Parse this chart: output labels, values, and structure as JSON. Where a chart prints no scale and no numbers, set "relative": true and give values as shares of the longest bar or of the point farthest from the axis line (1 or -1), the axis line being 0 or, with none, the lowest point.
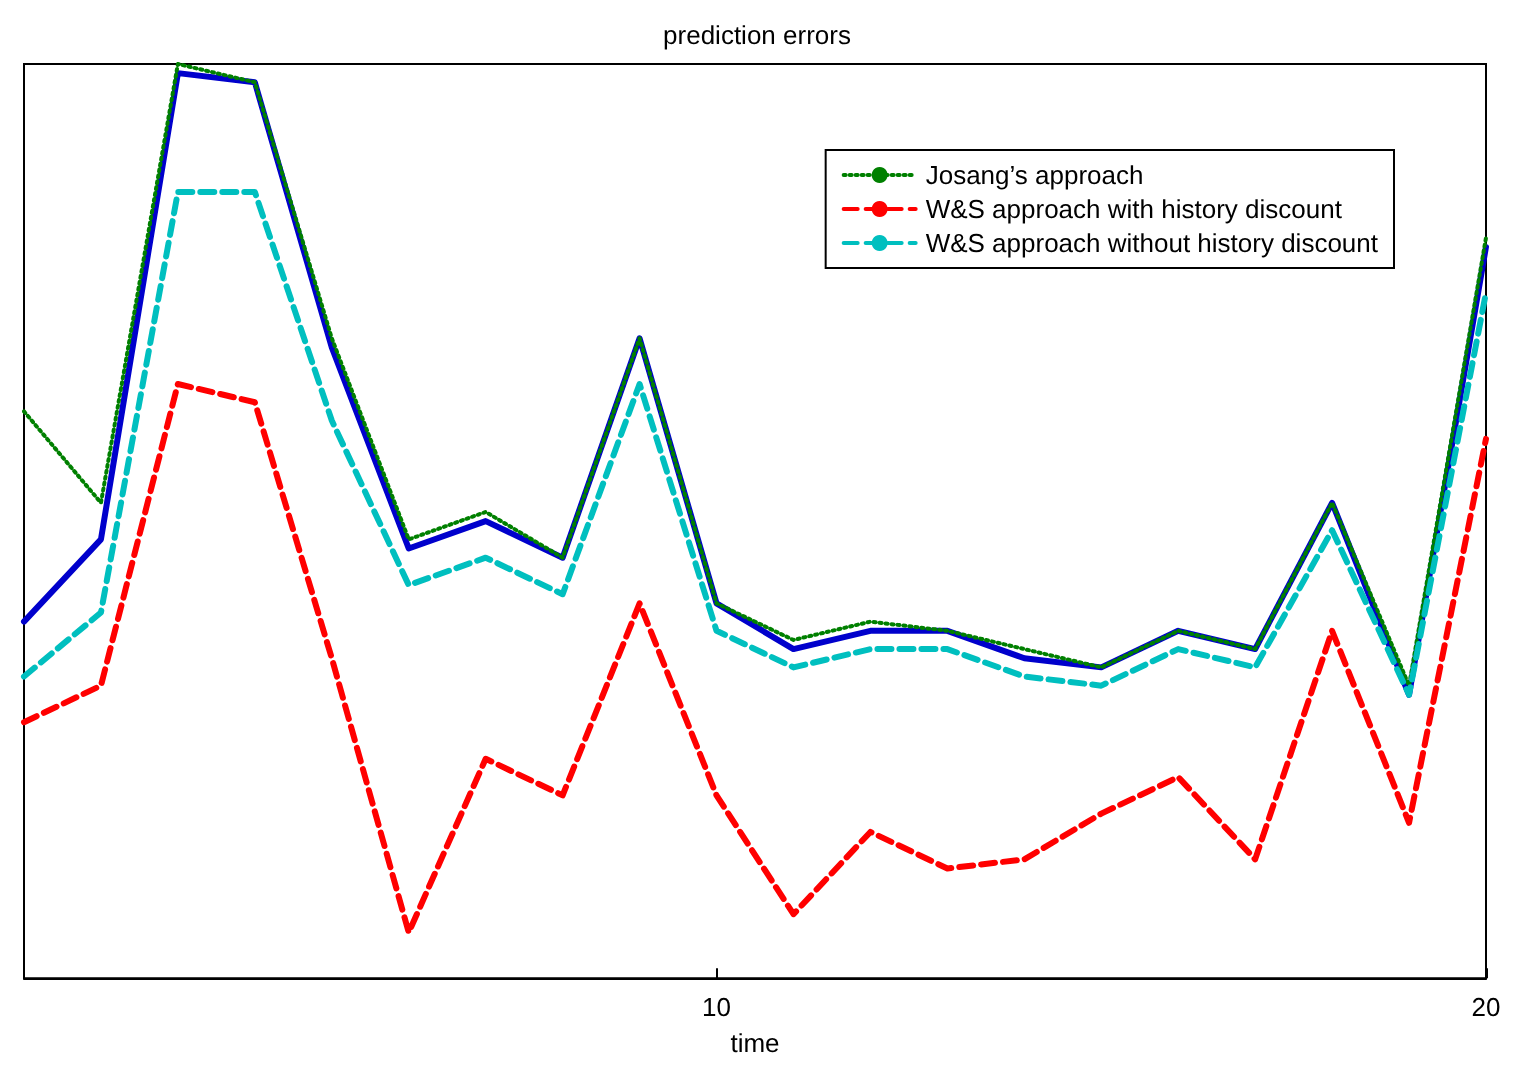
{
  "chart_data": {
    "type": "line",
    "title": "prediction errors",
    "xlabel": "time",
    "relative": true,
    "xlim": [
      1,
      20
    ],
    "xticks": [
      10,
      20
    ],
    "grid": false,
    "legend": "top right",
    "marker": "none",
    "x": [
      1,
      2,
      3,
      4,
      5,
      6,
      7,
      8,
      9,
      10,
      11,
      12,
      13,
      14,
      15,
      16,
      17,
      18,
      19,
      20
    ],
    "series": [
      {
        "color": "#0000cc",
        "line_style": "solid",
        "values": [
          0.39,
          0.48,
          0.99,
          0.98,
          0.69,
          0.47,
          0.5,
          0.46,
          0.7,
          0.41,
          0.36,
          0.38,
          0.38,
          0.35,
          0.34,
          0.38,
          0.36,
          0.52,
          0.31,
          0.8
        ]
      },
      {
        "name": "Josang’s approach",
        "color": "#008000",
        "line_style": "dotted",
        "values": [
          0.62,
          0.52,
          1.0,
          0.98,
          0.7,
          0.48,
          0.51,
          0.46,
          0.7,
          0.41,
          0.37,
          0.39,
          0.38,
          0.36,
          0.34,
          0.38,
          0.36,
          0.52,
          0.32,
          0.81
        ]
      },
      {
        "name": "W&S approach with history discount",
        "color": "#ff0000",
        "line_style": "dashed",
        "values": [
          0.28,
          0.32,
          0.65,
          0.63,
          0.35,
          0.05,
          0.24,
          0.2,
          0.41,
          0.2,
          0.07,
          0.16,
          0.12,
          0.13,
          0.18,
          0.22,
          0.13,
          0.38,
          0.17,
          0.59
        ]
      },
      {
        "name": "W&S approach without history discount",
        "color": "#00bfbf",
        "line_style": "dashed",
        "values": [
          0.33,
          0.4,
          0.86,
          0.86,
          0.61,
          0.43,
          0.46,
          0.42,
          0.65,
          0.38,
          0.34,
          0.36,
          0.36,
          0.33,
          0.32,
          0.36,
          0.34,
          0.49,
          0.31,
          0.75
        ]
      }
    ]
  }
}
